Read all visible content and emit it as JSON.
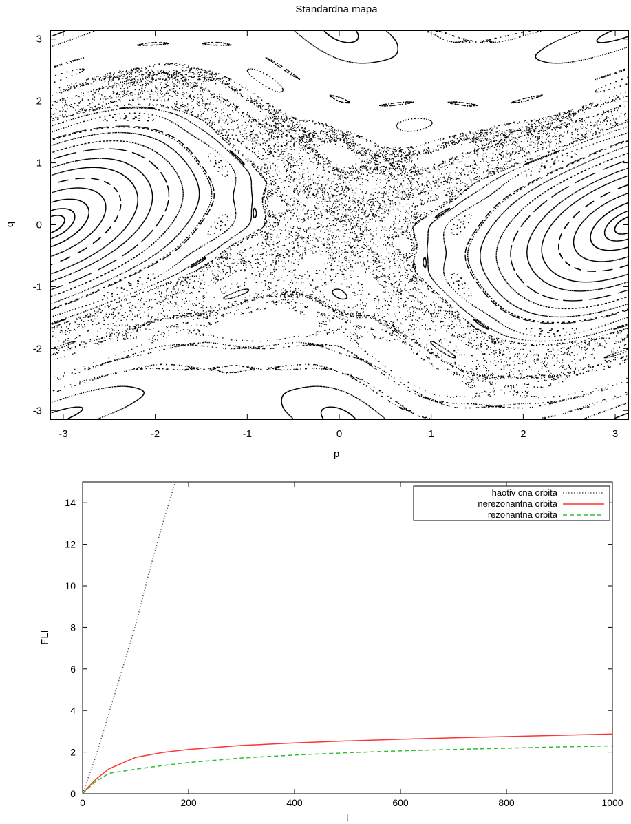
{
  "chart_data": [
    {
      "type": "scatter",
      "title": "Standardna mapa",
      "xlabel": "p",
      "ylabel": "q",
      "xlim": [
        -3.1416,
        3.1416
      ],
      "ylim": [
        -3.1416,
        3.1416
      ],
      "xticks": [
        "-3",
        "-2",
        "-1",
        "0",
        "1",
        "2",
        "3"
      ],
      "yticks": [
        "3",
        "2",
        "1",
        "0",
        "-1",
        "-2",
        "-3"
      ],
      "grid": false,
      "legend": false
    },
    {
      "type": "line",
      "title": "",
      "xlabel": "t",
      "ylabel": "FLI",
      "xlim": [
        0,
        1000
      ],
      "ylim": [
        0,
        15
      ],
      "xticks": [
        "0",
        "200",
        "400",
        "600",
        "800",
        "1000"
      ],
      "yticks": [
        "0",
        "2",
        "4",
        "6",
        "8",
        "10",
        "12",
        "14"
      ],
      "grid": false,
      "legend_position": "top-right",
      "series": [
        {
          "name": "haotiv cna orbita",
          "color": "#555555",
          "style": "dotted",
          "x": [
            0,
            25,
            50,
            75,
            100,
            125,
            150,
            175
          ],
          "y": [
            0,
            1.8,
            3.9,
            6.0,
            8.1,
            10.6,
            12.9,
            15.0
          ]
        },
        {
          "name": "nerezonantna orbita",
          "color": "#ff3333",
          "style": "solid",
          "x": [
            0,
            10,
            25,
            50,
            100,
            150,
            200,
            300,
            400,
            500,
            600,
            700,
            800,
            900,
            1000
          ],
          "y": [
            0,
            0.3,
            0.7,
            1.2,
            1.75,
            1.98,
            2.13,
            2.32,
            2.44,
            2.54,
            2.62,
            2.69,
            2.75,
            2.81,
            2.87
          ]
        },
        {
          "name": "rezonantna orbita",
          "color": "#33bb33",
          "style": "dashed",
          "x": [
            0,
            10,
            25,
            50,
            100,
            150,
            200,
            300,
            400,
            500,
            600,
            700,
            800,
            900,
            1000
          ],
          "y": [
            0,
            0.25,
            0.6,
            0.98,
            1.18,
            1.35,
            1.5,
            1.72,
            1.86,
            1.97,
            2.06,
            2.13,
            2.19,
            2.25,
            2.3
          ]
        }
      ]
    }
  ]
}
